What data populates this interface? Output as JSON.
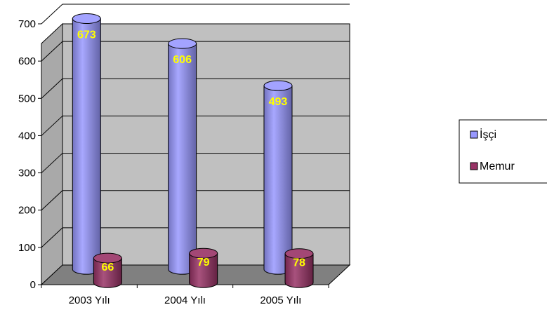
{
  "chart_data": {
    "type": "bar",
    "style": "3d-cylinder",
    "categories": [
      "2003 Yılı",
      "2004 Yılı",
      "2005 Yılı"
    ],
    "series": [
      {
        "name": "İşçi",
        "values": [
          673,
          606,
          493
        ],
        "color": "#9999ff"
      },
      {
        "name": "Memur",
        "values": [
          66,
          79,
          78
        ],
        "color": "#993366"
      }
    ],
    "yticks": [
      "0",
      "100",
      "200",
      "300",
      "400",
      "500",
      "600",
      "700"
    ],
    "ylim": [
      0,
      700
    ],
    "grid": true,
    "legend_position": "right",
    "title": "",
    "xlabel": "",
    "ylabel": "",
    "data_label_color": "#ffff00",
    "wall_color": "#c0c0c0",
    "floor_color": "#808080"
  }
}
